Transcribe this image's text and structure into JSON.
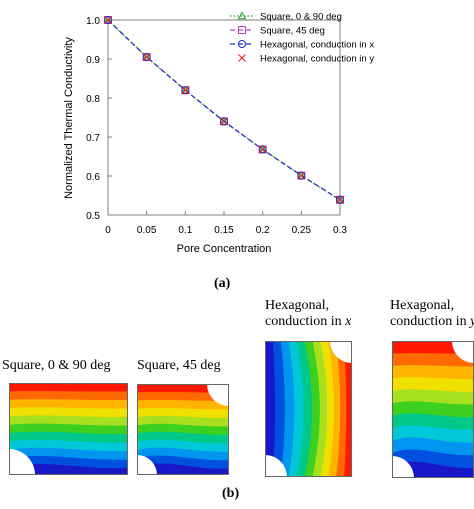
{
  "chart_data": {
    "type": "line",
    "xlabel": "Pore Concentration",
    "ylabel": "Normalized Thermal Conductivity",
    "xlim": [
      0,
      0.3
    ],
    "ylim": [
      0.5,
      1.0
    ],
    "xticks": [
      "0",
      "0.05",
      "0.1",
      "0.15",
      "0.2",
      "0.25",
      "0.3"
    ],
    "yticks": [
      "0.5",
      "0.6",
      "0.7",
      "0.8",
      "0.9",
      "1.0"
    ],
    "x": [
      0,
      0.05,
      0.1,
      0.15,
      0.2,
      0.25,
      0.3
    ],
    "legend_position": "top-right",
    "grid": false,
    "series": [
      {
        "name": "Square, 0 & 90 deg",
        "values": [
          1.0,
          0.905,
          0.82,
          0.74,
          0.668,
          0.601,
          0.539
        ],
        "color": "#22aa22",
        "marker": "triangle",
        "line": "dotted"
      },
      {
        "name": "Square, 45 deg",
        "values": [
          1.0,
          0.905,
          0.82,
          0.74,
          0.668,
          0.601,
          0.539
        ],
        "color": "#c040c0",
        "marker": "square",
        "line": "dashed"
      },
      {
        "name": "Hexagonal, conduction in x",
        "values": [
          1.0,
          0.905,
          0.82,
          0.74,
          0.668,
          0.601,
          0.539
        ],
        "color": "#1e2fd0",
        "marker": "circle",
        "line": "dashed"
      },
      {
        "name": "Hexagonal, conduction in y",
        "values": [
          1.0,
          0.905,
          0.82,
          0.74,
          0.668,
          0.601,
          0.539
        ],
        "color": "#e02020",
        "marker": "cross",
        "line": "none"
      }
    ]
  },
  "figure": {
    "label_a": "(a)",
    "label_b": "(b)",
    "cells": [
      {
        "title_line1": "Square, 0 & 90 deg",
        "title_line2": ""
      },
      {
        "title_line1": "Square, 45 deg",
        "title_line2": ""
      },
      {
        "title_line1": "Hexagonal,",
        "title_line2": "conduction in ",
        "title_var": "x"
      },
      {
        "title_line1": "Hexagonal,",
        "title_line2": "conduction in ",
        "title_var": "y"
      }
    ],
    "colors": {
      "contour": [
        "#ff1800",
        "#ff6a00",
        "#ffb400",
        "#f0e000",
        "#a8e020",
        "#3ed020",
        "#00c888",
        "#00c8d8",
        "#0096f0",
        "#0050e0",
        "#1818c8"
      ]
    }
  }
}
